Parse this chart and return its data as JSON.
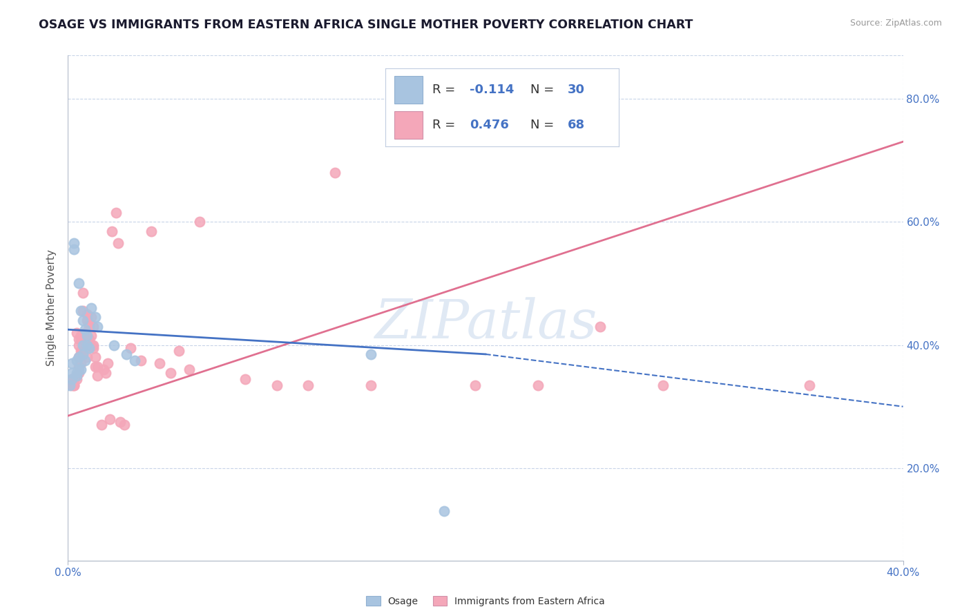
{
  "title": "OSAGE VS IMMIGRANTS FROM EASTERN AFRICA SINGLE MOTHER POVERTY CORRELATION CHART",
  "source": "Source: ZipAtlas.com",
  "ylabel": "Single Mother Poverty",
  "xlim": [
    0.0,
    0.4
  ],
  "ylim": [
    0.05,
    0.87
  ],
  "yticks": [
    0.2,
    0.4,
    0.6,
    0.8
  ],
  "ytick_labels": [
    "20.0%",
    "40.0%",
    "60.0%",
    "80.0%"
  ],
  "xtick_labels": [
    "0.0%",
    "40.0%"
  ],
  "color_osage": "#a8c4e0",
  "color_eastern_africa": "#f4a7b9",
  "color_blue_text": "#4472c4",
  "color_pink_line": "#e07090",
  "background_color": "#ffffff",
  "grid_color": "#c8d4e8",
  "watermark": "ZIPatlas",
  "osage_points": [
    [
      0.001,
      0.335
    ],
    [
      0.002,
      0.37
    ],
    [
      0.002,
      0.355
    ],
    [
      0.002,
      0.345
    ],
    [
      0.003,
      0.565
    ],
    [
      0.003,
      0.555
    ],
    [
      0.004,
      0.355
    ],
    [
      0.004,
      0.375
    ],
    [
      0.004,
      0.35
    ],
    [
      0.005,
      0.5
    ],
    [
      0.005,
      0.38
    ],
    [
      0.005,
      0.36
    ],
    [
      0.006,
      0.455
    ],
    [
      0.006,
      0.36
    ],
    [
      0.007,
      0.44
    ],
    [
      0.007,
      0.4
    ],
    [
      0.007,
      0.385
    ],
    [
      0.008,
      0.425
    ],
    [
      0.008,
      0.375
    ],
    [
      0.009,
      0.415
    ],
    [
      0.009,
      0.4
    ],
    [
      0.01,
      0.395
    ],
    [
      0.011,
      0.46
    ],
    [
      0.013,
      0.445
    ],
    [
      0.014,
      0.43
    ],
    [
      0.022,
      0.4
    ],
    [
      0.028,
      0.385
    ],
    [
      0.032,
      0.375
    ],
    [
      0.145,
      0.385
    ],
    [
      0.18,
      0.13
    ]
  ],
  "eastern_africa_points": [
    [
      0.002,
      0.345
    ],
    [
      0.002,
      0.335
    ],
    [
      0.003,
      0.345
    ],
    [
      0.003,
      0.335
    ],
    [
      0.003,
      0.335
    ],
    [
      0.004,
      0.345
    ],
    [
      0.004,
      0.35
    ],
    [
      0.004,
      0.42
    ],
    [
      0.005,
      0.38
    ],
    [
      0.005,
      0.365
    ],
    [
      0.005,
      0.355
    ],
    [
      0.005,
      0.41
    ],
    [
      0.005,
      0.4
    ],
    [
      0.006,
      0.39
    ],
    [
      0.006,
      0.415
    ],
    [
      0.006,
      0.41
    ],
    [
      0.006,
      0.385
    ],
    [
      0.006,
      0.37
    ],
    [
      0.007,
      0.485
    ],
    [
      0.007,
      0.4
    ],
    [
      0.007,
      0.455
    ],
    [
      0.008,
      0.415
    ],
    [
      0.008,
      0.395
    ],
    [
      0.008,
      0.42
    ],
    [
      0.009,
      0.45
    ],
    [
      0.009,
      0.44
    ],
    [
      0.009,
      0.38
    ],
    [
      0.01,
      0.435
    ],
    [
      0.01,
      0.41
    ],
    [
      0.01,
      0.43
    ],
    [
      0.011,
      0.4
    ],
    [
      0.011,
      0.445
    ],
    [
      0.011,
      0.415
    ],
    [
      0.012,
      0.43
    ],
    [
      0.012,
      0.395
    ],
    [
      0.012,
      0.4
    ],
    [
      0.013,
      0.365
    ],
    [
      0.013,
      0.38
    ],
    [
      0.014,
      0.365
    ],
    [
      0.014,
      0.35
    ],
    [
      0.016,
      0.27
    ],
    [
      0.017,
      0.36
    ],
    [
      0.018,
      0.355
    ],
    [
      0.019,
      0.37
    ],
    [
      0.02,
      0.28
    ],
    [
      0.021,
      0.585
    ],
    [
      0.023,
      0.615
    ],
    [
      0.024,
      0.565
    ],
    [
      0.025,
      0.275
    ],
    [
      0.027,
      0.27
    ],
    [
      0.03,
      0.395
    ],
    [
      0.035,
      0.375
    ],
    [
      0.04,
      0.585
    ],
    [
      0.044,
      0.37
    ],
    [
      0.049,
      0.355
    ],
    [
      0.053,
      0.39
    ],
    [
      0.058,
      0.36
    ],
    [
      0.063,
      0.6
    ],
    [
      0.085,
      0.345
    ],
    [
      0.1,
      0.335
    ],
    [
      0.115,
      0.335
    ],
    [
      0.128,
      0.68
    ],
    [
      0.145,
      0.335
    ],
    [
      0.195,
      0.335
    ],
    [
      0.225,
      0.335
    ],
    [
      0.255,
      0.43
    ],
    [
      0.285,
      0.335
    ],
    [
      0.355,
      0.335
    ]
  ],
  "osage_line_solid": {
    "x0": 0.0,
    "y0": 0.425,
    "x1": 0.2,
    "y1": 0.385
  },
  "osage_line_dash": {
    "x0": 0.2,
    "y0": 0.385,
    "x1": 0.4,
    "y1": 0.3
  },
  "eastern_africa_line": {
    "x0": 0.0,
    "y0": 0.285,
    "x1": 0.4,
    "y1": 0.73
  }
}
